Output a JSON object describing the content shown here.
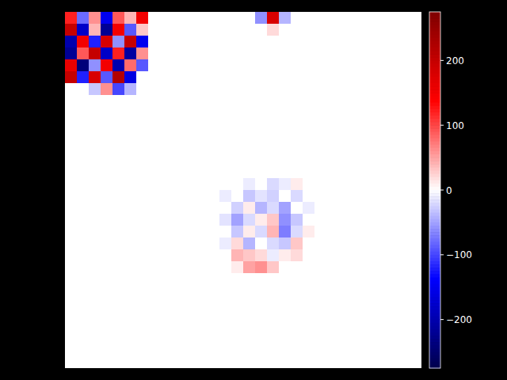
{
  "chart_data": {
    "type": "heatmap",
    "tick_labels": false,
    "cells": [
      [
        120,
        -80,
        60,
        -150,
        90,
        40,
        150,
        0,
        0,
        0,
        0,
        0,
        0,
        0,
        0,
        0,
        -60,
        180,
        -40,
        0,
        0,
        0,
        0,
        0,
        0,
        0,
        0,
        0,
        0,
        0
      ],
      [
        200,
        -180,
        40,
        -220,
        150,
        -90,
        30,
        0,
        0,
        0,
        0,
        0,
        0,
        0,
        0,
        0,
        0,
        20,
        0,
        0,
        0,
        0,
        0,
        0,
        0,
        0,
        0,
        0,
        0,
        0
      ],
      [
        -200,
        150,
        -120,
        180,
        -60,
        200,
        -150,
        0,
        0,
        0,
        0,
        0,
        0,
        0,
        0,
        0,
        0,
        0,
        0,
        0,
        0,
        0,
        0,
        0,
        0,
        0,
        0,
        0,
        0,
        0
      ],
      [
        -220,
        90,
        200,
        -180,
        120,
        -210,
        60,
        0,
        0,
        0,
        0,
        0,
        0,
        0,
        0,
        0,
        0,
        0,
        0,
        0,
        0,
        0,
        0,
        0,
        0,
        0,
        0,
        0,
        0,
        0
      ],
      [
        160,
        -240,
        -60,
        150,
        -200,
        80,
        -90,
        0,
        0,
        0,
        0,
        0,
        0,
        0,
        0,
        0,
        0,
        0,
        0,
        0,
        0,
        0,
        0,
        0,
        0,
        0,
        0,
        0,
        0,
        0
      ],
      [
        200,
        -120,
        180,
        -90,
        220,
        -160,
        0,
        0,
        0,
        0,
        0,
        0,
        0,
        0,
        0,
        0,
        0,
        0,
        0,
        0,
        0,
        0,
        0,
        0,
        0,
        0,
        0,
        0,
        0,
        0
      ],
      [
        0,
        0,
        -30,
        60,
        -100,
        -40,
        0,
        0,
        0,
        0,
        0,
        0,
        0,
        0,
        0,
        0,
        0,
        0,
        0,
        0,
        0,
        0,
        0,
        0,
        0,
        0,
        0,
        0,
        0,
        0
      ],
      [
        0,
        0,
        0,
        0,
        0,
        0,
        0,
        0,
        0,
        0,
        0,
        0,
        0,
        0,
        0,
        0,
        0,
        0,
        0,
        0,
        0,
        0,
        0,
        0,
        0,
        0,
        0,
        0,
        0,
        0
      ],
      [
        0,
        0,
        0,
        0,
        0,
        0,
        0,
        0,
        0,
        0,
        0,
        0,
        0,
        0,
        0,
        0,
        0,
        0,
        0,
        0,
        0,
        0,
        0,
        0,
        0,
        0,
        0,
        0,
        0,
        0
      ],
      [
        0,
        0,
        0,
        0,
        0,
        0,
        0,
        0,
        0,
        0,
        0,
        0,
        0,
        0,
        0,
        0,
        0,
        0,
        0,
        0,
        0,
        0,
        0,
        0,
        0,
        0,
        0,
        0,
        0,
        0
      ],
      [
        0,
        0,
        0,
        0,
        0,
        0,
        0,
        0,
        0,
        0,
        0,
        0,
        0,
        0,
        0,
        0,
        0,
        0,
        0,
        0,
        0,
        0,
        0,
        0,
        0,
        0,
        0,
        0,
        0,
        0
      ],
      [
        0,
        0,
        0,
        0,
        0,
        0,
        0,
        0,
        0,
        0,
        0,
        0,
        0,
        0,
        0,
        0,
        0,
        0,
        0,
        0,
        0,
        0,
        0,
        0,
        0,
        0,
        0,
        0,
        0,
        0
      ],
      [
        0,
        0,
        0,
        0,
        0,
        0,
        0,
        0,
        0,
        0,
        0,
        0,
        0,
        0,
        0,
        0,
        0,
        0,
        0,
        0,
        0,
        0,
        0,
        0,
        0,
        0,
        0,
        0,
        0,
        0
      ],
      [
        0,
        0,
        0,
        0,
        0,
        0,
        0,
        0,
        0,
        0,
        0,
        0,
        0,
        0,
        0,
        0,
        0,
        0,
        0,
        0,
        0,
        0,
        0,
        0,
        0,
        0,
        0,
        0,
        0,
        0
      ],
      [
        0,
        0,
        0,
        0,
        0,
        0,
        0,
        0,
        0,
        0,
        0,
        0,
        0,
        0,
        0,
        -10,
        0,
        -20,
        -10,
        10,
        0,
        0,
        0,
        0,
        0,
        0,
        0,
        0,
        0,
        0
      ],
      [
        0,
        0,
        0,
        0,
        0,
        0,
        0,
        0,
        0,
        0,
        0,
        0,
        0,
        -10,
        0,
        -30,
        -15,
        -25,
        0,
        -20,
        0,
        0,
        0,
        0,
        0,
        0,
        0,
        0,
        0,
        0
      ],
      [
        0,
        0,
        0,
        0,
        0,
        0,
        0,
        0,
        0,
        0,
        0,
        0,
        0,
        0,
        -25,
        10,
        -40,
        -20,
        -50,
        0,
        -10,
        0,
        0,
        0,
        0,
        0,
        0,
        0,
        0,
        0
      ],
      [
        0,
        0,
        0,
        0,
        0,
        0,
        0,
        0,
        0,
        0,
        0,
        0,
        0,
        -15,
        -50,
        -20,
        10,
        30,
        -60,
        -30,
        0,
        0,
        0,
        0,
        0,
        0,
        0,
        0,
        0,
        0
      ],
      [
        0,
        0,
        0,
        0,
        0,
        0,
        0,
        0,
        0,
        0,
        0,
        0,
        0,
        0,
        -30,
        10,
        -20,
        40,
        -70,
        -20,
        10,
        0,
        0,
        0,
        0,
        0,
        0,
        0,
        0,
        0
      ],
      [
        0,
        0,
        0,
        0,
        0,
        0,
        0,
        0,
        0,
        0,
        0,
        0,
        0,
        -10,
        20,
        -40,
        0,
        -20,
        -30,
        30,
        0,
        0,
        0,
        0,
        0,
        0,
        0,
        0,
        0,
        0
      ],
      [
        0,
        0,
        0,
        0,
        0,
        0,
        0,
        0,
        0,
        0,
        0,
        0,
        0,
        0,
        40,
        30,
        20,
        -10,
        10,
        20,
        0,
        0,
        0,
        0,
        0,
        0,
        0,
        0,
        0,
        0
      ],
      [
        0,
        0,
        0,
        0,
        0,
        0,
        0,
        0,
        0,
        0,
        0,
        0,
        0,
        0,
        10,
        50,
        60,
        30,
        0,
        0,
        0,
        0,
        0,
        0,
        0,
        0,
        0,
        0,
        0,
        0
      ],
      [
        0,
        0,
        0,
        0,
        0,
        0,
        0,
        0,
        0,
        0,
        0,
        0,
        0,
        0,
        0,
        0,
        0,
        0,
        0,
        0,
        0,
        0,
        0,
        0,
        0,
        0,
        0,
        0,
        0,
        0
      ],
      [
        0,
        0,
        0,
        0,
        0,
        0,
        0,
        0,
        0,
        0,
        0,
        0,
        0,
        0,
        0,
        0,
        0,
        0,
        0,
        0,
        0,
        0,
        0,
        0,
        0,
        0,
        0,
        0,
        0,
        0
      ],
      [
        0,
        0,
        0,
        0,
        0,
        0,
        0,
        0,
        0,
        0,
        0,
        0,
        0,
        0,
        0,
        0,
        0,
        0,
        0,
        0,
        0,
        0,
        0,
        0,
        0,
        0,
        0,
        0,
        0,
        0
      ],
      [
        0,
        0,
        0,
        0,
        0,
        0,
        0,
        0,
        0,
        0,
        0,
        0,
        0,
        0,
        0,
        0,
        0,
        0,
        0,
        0,
        0,
        0,
        0,
        0,
        0,
        0,
        0,
        0,
        0,
        0
      ],
      [
        0,
        0,
        0,
        0,
        0,
        0,
        0,
        0,
        0,
        0,
        0,
        0,
        0,
        0,
        0,
        0,
        0,
        0,
        0,
        0,
        0,
        0,
        0,
        0,
        0,
        0,
        0,
        0,
        0,
        0
      ],
      [
        0,
        0,
        0,
        0,
        0,
        0,
        0,
        0,
        0,
        0,
        0,
        0,
        0,
        0,
        0,
        0,
        0,
        0,
        0,
        0,
        0,
        0,
        0,
        0,
        0,
        0,
        0,
        0,
        0,
        0
      ],
      [
        0,
        0,
        0,
        0,
        0,
        0,
        0,
        0,
        0,
        0,
        0,
        0,
        0,
        0,
        0,
        0,
        0,
        0,
        0,
        0,
        0,
        0,
        0,
        0,
        0,
        0,
        0,
        0,
        0,
        0
      ],
      [
        0,
        0,
        0,
        0,
        0,
        0,
        0,
        0,
        0,
        0,
        0,
        0,
        0,
        0,
        0,
        0,
        0,
        0,
        0,
        0,
        0,
        0,
        0,
        0,
        0,
        0,
        0,
        0,
        0,
        0
      ]
    ],
    "colorbar": {
      "range": [
        -275,
        275
      ],
      "ticks": [
        {
          "value": -200,
          "label": "−200"
        },
        {
          "value": -100,
          "label": "−100"
        },
        0,
        100,
        200
      ]
    }
  }
}
